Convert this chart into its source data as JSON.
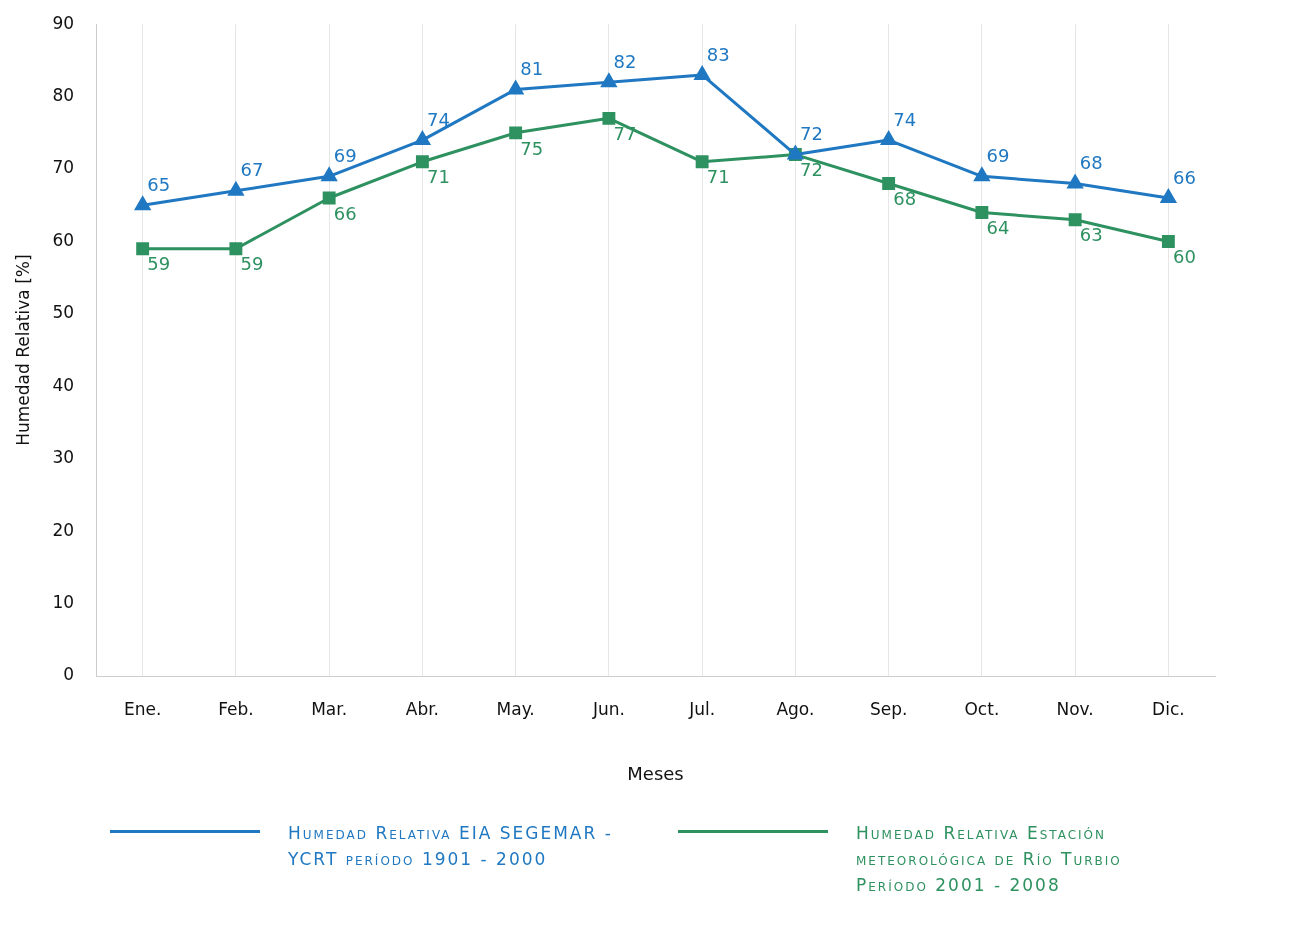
{
  "chart_data": {
    "type": "line",
    "xlabel": "Meses",
    "ylabel": "Humedad Relativa [%]",
    "categories": [
      "Ene.",
      "Feb.",
      "Mar.",
      "Abr.",
      "May.",
      "Jun.",
      "Jul.",
      "Ago.",
      "Sep.",
      "Oct.",
      "Nov.",
      "Dic."
    ],
    "series": [
      {
        "name": "Humedad Relativa EIA SEGEMAR - YCRT período 1901 - 2000",
        "color": "#1f78c1",
        "marker": "triangle",
        "values": [
          65,
          67,
          69,
          74,
          81,
          82,
          83,
          72,
          74,
          69,
          68,
          66
        ]
      },
      {
        "name": "Humedad Relativa Estación meteorológica de Río Turbio Período 2001 - 2008",
        "color": "#2e9160",
        "marker": "square",
        "values": [
          59,
          59,
          66,
          71,
          75,
          77,
          71,
          72,
          68,
          64,
          63,
          60
        ]
      }
    ],
    "ylim": [
      0,
      90
    ],
    "yticks": [
      0,
      10,
      20,
      30,
      40,
      50,
      60,
      70,
      80,
      90
    ],
    "grid": "x",
    "legend": "bottom",
    "data_labels": true,
    "line_style": "solid"
  }
}
